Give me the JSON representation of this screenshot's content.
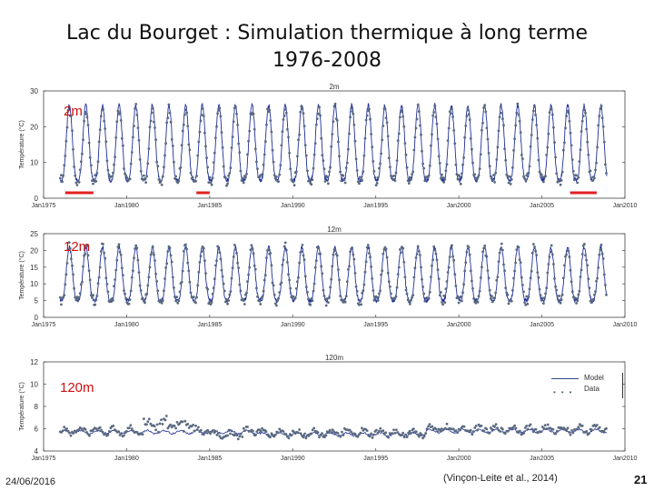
{
  "title_line1": "Lac du Bourget : Simulation thermique à long terme",
  "title_line2": "1976-2008",
  "chart_data": [
    {
      "type": "line",
      "panel_title": "2m",
      "depth_label": "2m",
      "ylabel": "Température (°C)",
      "ylim": [
        0,
        30
      ],
      "yticks": [
        0,
        10,
        20,
        30
      ],
      "xlim": [
        1975,
        2010
      ],
      "xticks": [
        "Jan1975",
        "Jan1980",
        "Jan1985",
        "Jan1990",
        "Jan1995",
        "Jan2000",
        "Jan2005",
        "Jan2010"
      ],
      "series": [
        {
          "name": "Model",
          "pattern": "seasonal",
          "min": 5,
          "max": 26
        },
        {
          "name": "Data",
          "pattern": "seasonal-points",
          "min": 5,
          "max": 25
        }
      ],
      "highlight_periods": [
        [
          1976.3,
          1978.0
        ],
        [
          1984.2,
          1985.0
        ],
        [
          2006.7,
          2008.3
        ]
      ]
    },
    {
      "type": "line",
      "panel_title": "12m",
      "depth_label": "12m",
      "ylabel": "Température (°C)",
      "ylim": [
        0,
        25
      ],
      "yticks": [
        0,
        5,
        10,
        15,
        20,
        25
      ],
      "xlim": [
        1975,
        2010
      ],
      "xticks": [
        "Jan1975",
        "Jan1980",
        "Jan1985",
        "Jan1990",
        "Jan1995",
        "Jan2000",
        "Jan2005",
        "Jan2010"
      ],
      "series": [
        {
          "name": "Model",
          "pattern": "seasonal",
          "min": 5,
          "max": 21
        },
        {
          "name": "Data",
          "pattern": "seasonal-points",
          "min": 5,
          "max": 21
        }
      ]
    },
    {
      "type": "line",
      "panel_title": "120m",
      "depth_label": "120m",
      "ylabel": "Température (°C)",
      "ylim": [
        4,
        12
      ],
      "yticks": [
        4,
        6,
        8,
        10,
        12
      ],
      "xlim": [
        1975,
        2010
      ],
      "xticks": [
        "Jan1975",
        "Jan1980",
        "Jan1985",
        "Jan1990",
        "Jan1995",
        "Jan2000",
        "Jan2005",
        "Jan2010"
      ],
      "series": [
        {
          "name": "Model",
          "pattern": "slow",
          "base": 5.7
        },
        {
          "name": "Data",
          "pattern": "slow-points",
          "base": 5.8
        }
      ],
      "legend": [
        "Model",
        "Data"
      ]
    }
  ],
  "legend_model": "Model",
  "legend_data": "Data",
  "footer_date": "24/06/2016",
  "footer_citation": "(Vinçon-Leite et al., 2014)",
  "footer_page": "21",
  "colors": {
    "model": "#1f2f9a",
    "data": "#5a6a80",
    "highlight": "#e02020",
    "axis": "#444444"
  }
}
